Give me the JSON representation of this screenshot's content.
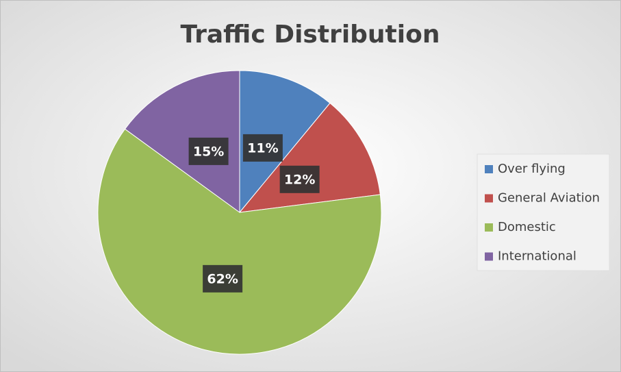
{
  "chart_data": {
    "type": "pie",
    "title": "Traffic Distribution",
    "categories": [
      "Over flying",
      "General Aviation",
      "Domestic",
      "International"
    ],
    "values": [
      11,
      12,
      62,
      15
    ],
    "value_labels": [
      "11%",
      "12%",
      "62%",
      "15%"
    ],
    "colors": [
      "#4f81bd",
      "#c0504d",
      "#9bbb59",
      "#8064a2"
    ],
    "legend": "right"
  }
}
